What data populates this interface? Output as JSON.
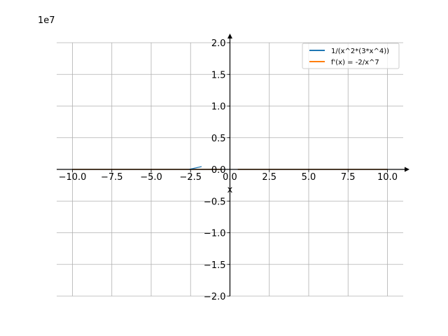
{
  "chart_data": {
    "type": "line",
    "offset_label": "1e7",
    "xlabel": "x",
    "xlim": [
      -11,
      11
    ],
    "ylim": [
      -2.0,
      2.0
    ],
    "y_scale_factor": 10000000,
    "x_ticks": [
      -10.0,
      -7.5,
      -5.0,
      -2.5,
      0.0,
      2.5,
      5.0,
      7.5,
      10.0
    ],
    "x_tick_labels": [
      "−10.0",
      "−7.5",
      "−5.0",
      "−2.5",
      "0.0",
      "2.5",
      "5.0",
      "7.5",
      "10.0"
    ],
    "y_ticks": [
      -2.0,
      -1.5,
      -1.0,
      -0.5,
      0.0,
      0.5,
      1.0,
      1.5,
      2.0
    ],
    "y_tick_labels": [
      "−2.0",
      "−1.5",
      "−1.0",
      "−0.5",
      "0.0",
      "0.5",
      "1.0",
      "1.5",
      "2.0"
    ],
    "grid": true,
    "legend_position": "top-right",
    "series": [
      {
        "name": "1/(x^2*(3*x^4))",
        "color": "#1f77b4",
        "x": [
          -10,
          -5,
          -2,
          -1,
          -0.5,
          0.5,
          1,
          2,
          5,
          10
        ],
        "y": [
          3.33e-08,
          2.13e-06,
          5.21e-05,
          3.33e-08,
          2.13e-06,
          2.13e-06,
          3.33e-08,
          5.21e-05,
          2.13e-06,
          3.33e-08
        ]
      },
      {
        "name": "f'(x) = -2/x^7",
        "color": "#ff7f0e",
        "x": [
          -10,
          -5,
          -2,
          -1,
          -0.5,
          0.5,
          1,
          2,
          5,
          10
        ],
        "y": [
          2e-10,
          2.56e-08,
          1.5625e-06,
          2e-07,
          2.56e-05,
          -2.56e-05,
          -2e-07,
          -1.5625e-06,
          -2.56e-08,
          -2e-10
        ]
      }
    ]
  }
}
